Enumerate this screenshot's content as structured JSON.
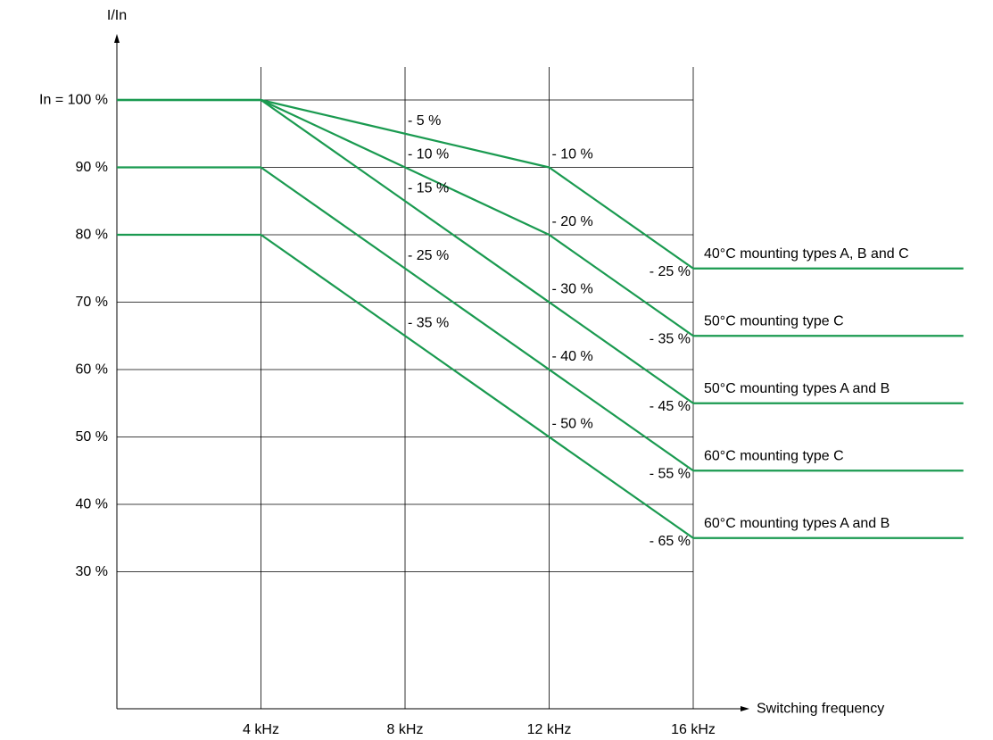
{
  "chart_data": {
    "type": "line",
    "title": "",
    "ylabel": "I/In",
    "xlabel": "Switching frequency",
    "x_ticks": [
      {
        "value": 4,
        "label": "4 kHz"
      },
      {
        "value": 8,
        "label": "8 kHz"
      },
      {
        "value": 12,
        "label": "12 kHz"
      },
      {
        "value": 16,
        "label": "16 kHz"
      }
    ],
    "y_ticks": [
      {
        "value": 100,
        "label": "In = 100 %"
      },
      {
        "value": 90,
        "label": "90 %"
      },
      {
        "value": 80,
        "label": "80 %"
      },
      {
        "value": 70,
        "label": "70 %"
      },
      {
        "value": 60,
        "label": "60 %"
      },
      {
        "value": 50,
        "label": "50 %"
      },
      {
        "value": 40,
        "label": "40 %"
      },
      {
        "value": 30,
        "label": "30 %"
      }
    ],
    "xlim": [
      0,
      16
    ],
    "ylim": [
      20,
      100
    ],
    "grid": true,
    "line_color": "#1a9a50",
    "axis_color": "#000000",
    "series": [
      {
        "name": "40°C mounting types A, B and C",
        "x": [
          0,
          4,
          12,
          16,
          23.5
        ],
        "y": [
          100,
          100,
          90,
          75,
          75
        ]
      },
      {
        "name": "50°C mounting type C",
        "x": [
          0,
          4,
          12,
          16,
          23.5
        ],
        "y": [
          100,
          100,
          80,
          65,
          65
        ]
      },
      {
        "name": "50°C mounting types A and B",
        "x": [
          0,
          4,
          16,
          23.5
        ],
        "y": [
          100,
          100,
          55,
          55
        ]
      },
      {
        "name": "60°C mounting type C",
        "x": [
          0,
          4,
          16,
          23.5
        ],
        "y": [
          90,
          90,
          45,
          45
        ]
      },
      {
        "name": "60°C mounting types A and B",
        "x": [
          0,
          4,
          16,
          23.5
        ],
        "y": [
          80,
          80,
          35,
          35
        ]
      }
    ],
    "annotations": [
      {
        "text": "- 5 %",
        "x": 8,
        "y": 95,
        "anchor": "start"
      },
      {
        "text": "- 10 %",
        "x": 8,
        "y": 90,
        "anchor": "start"
      },
      {
        "text": "- 15 %",
        "x": 8,
        "y": 85,
        "anchor": "start"
      },
      {
        "text": "- 25 %",
        "x": 8,
        "y": 75,
        "anchor": "start"
      },
      {
        "text": "- 35 %",
        "x": 8,
        "y": 65,
        "anchor": "start"
      },
      {
        "text": "- 10 %",
        "x": 12,
        "y": 90,
        "anchor": "start"
      },
      {
        "text": "- 20 %",
        "x": 12,
        "y": 80,
        "anchor": "start"
      },
      {
        "text": "- 30 %",
        "x": 12,
        "y": 70,
        "anchor": "start"
      },
      {
        "text": "- 40 %",
        "x": 12,
        "y": 60,
        "anchor": "start"
      },
      {
        "text": "- 50 %",
        "x": 12,
        "y": 50,
        "anchor": "start"
      },
      {
        "text": "- 25 %",
        "x": 16,
        "y": 75,
        "anchor": "end"
      },
      {
        "text": "- 35 %",
        "x": 16,
        "y": 65,
        "anchor": "end"
      },
      {
        "text": "- 45 %",
        "x": 16,
        "y": 55,
        "anchor": "end"
      },
      {
        "text": "- 55 %",
        "x": 16,
        "y": 45,
        "anchor": "end"
      },
      {
        "text": "- 65 %",
        "x": 16,
        "y": 35,
        "anchor": "end"
      }
    ]
  }
}
